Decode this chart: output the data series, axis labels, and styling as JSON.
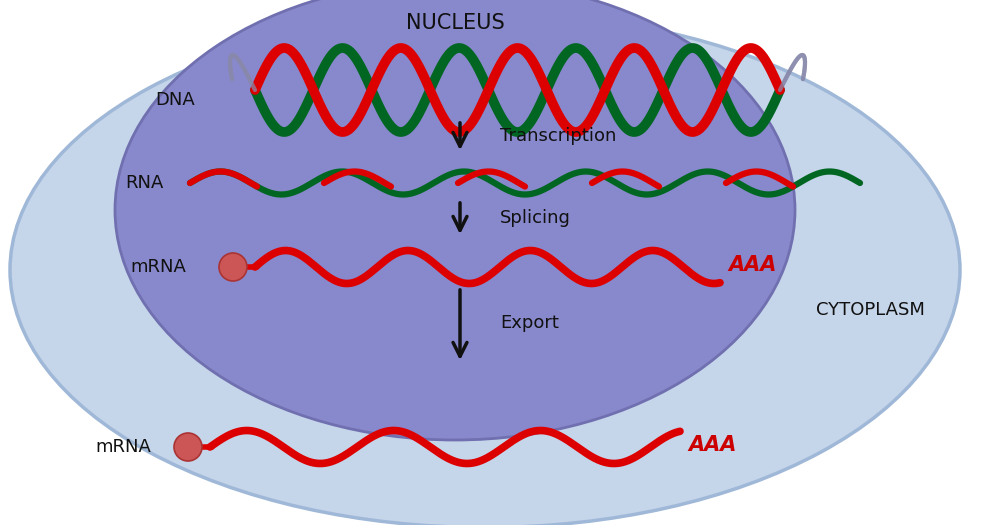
{
  "bg_outer_color": "#c5d5ea",
  "bg_outer_edge": "#a0b8d8",
  "bg_inner_color": "#8888cc",
  "bg_inner_edge": "#7070b0",
  "nucleus_label": "NUCLEUS",
  "cytoplasm_label": "CYTOPLASM",
  "dna_label": "DNA",
  "rna_label": "RNA",
  "mrna_label1": "mRNA",
  "mrna_label2": "mRNA",
  "transcription_label": "Transcription",
  "splicing_label": "Splicing",
  "export_label": "Export",
  "aaa_label": "AAA",
  "dna_red": "#dd0000",
  "dna_green": "#006622",
  "rna_red": "#dd0000",
  "rna_green": "#006622",
  "mrna_red": "#dd0000",
  "text_color_black": "#111111",
  "text_color_red": "#cc0000",
  "arrow_color": "#111111",
  "cap_color": "#cc5555",
  "cap_edge": "#aa3333",
  "nucleus_label_fontsize": 15,
  "cytoplasm_label_fontsize": 13,
  "label_fontsize": 13,
  "process_fontsize": 13
}
